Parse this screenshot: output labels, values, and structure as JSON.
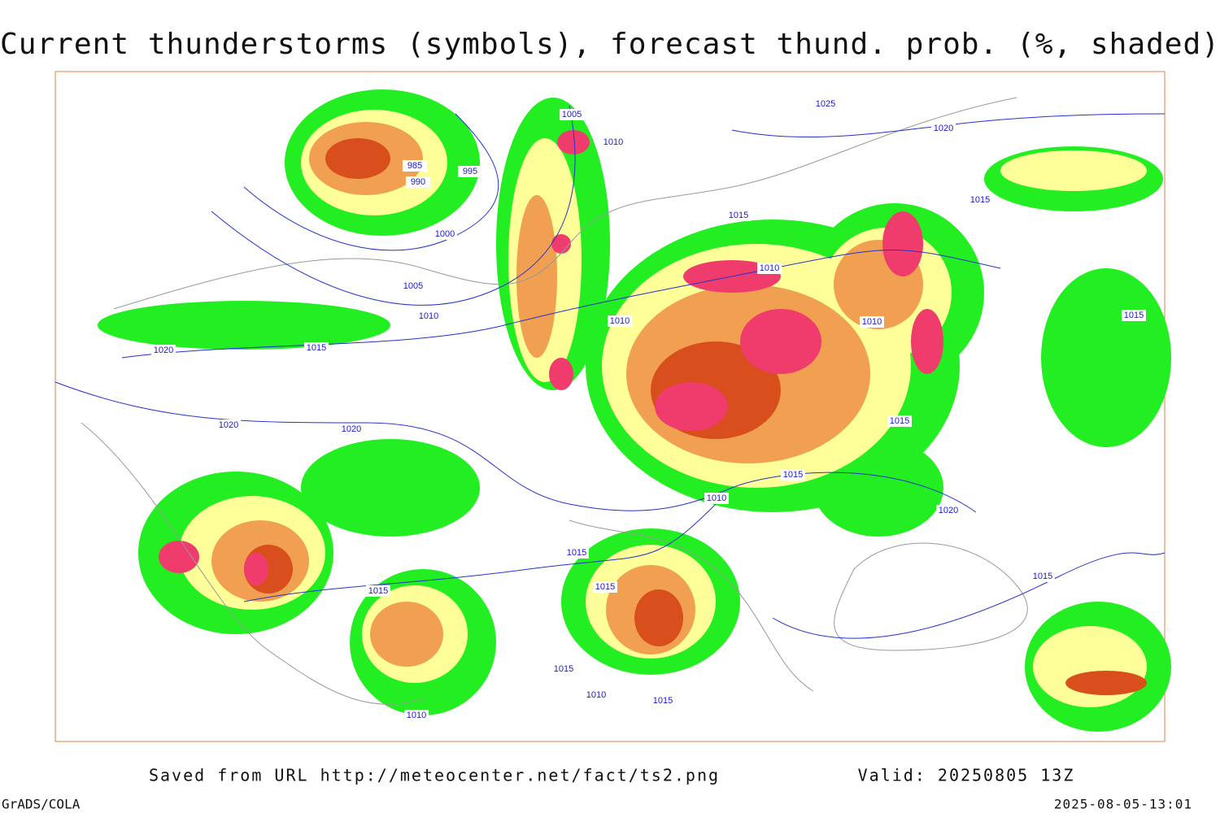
{
  "header": {
    "title": "Current thunderstorms (symbols), forecast thund. prob. (%, shaded)"
  },
  "map": {
    "isobar_labels": [
      "1025",
      "1020",
      "1005",
      "1010",
      "985",
      "995",
      "990",
      "1000",
      "1005",
      "1010",
      "1015",
      "1015",
      "1015",
      "1020",
      "1020",
      "1020",
      "1010",
      "1010",
      "1010",
      "1015",
      "1015",
      "1015",
      "1010",
      "1020",
      "1015",
      "1015",
      "1015",
      "1015",
      "1015",
      "1010",
      "1015",
      "1010"
    ]
  },
  "footer": {
    "source": "Saved from URL http://meteocenter.net/fact/ts2.png",
    "valid": "Valid: 20250805 13Z",
    "software": "GrADS/COLA",
    "timestamp": "2025-08-05-13:01"
  }
}
